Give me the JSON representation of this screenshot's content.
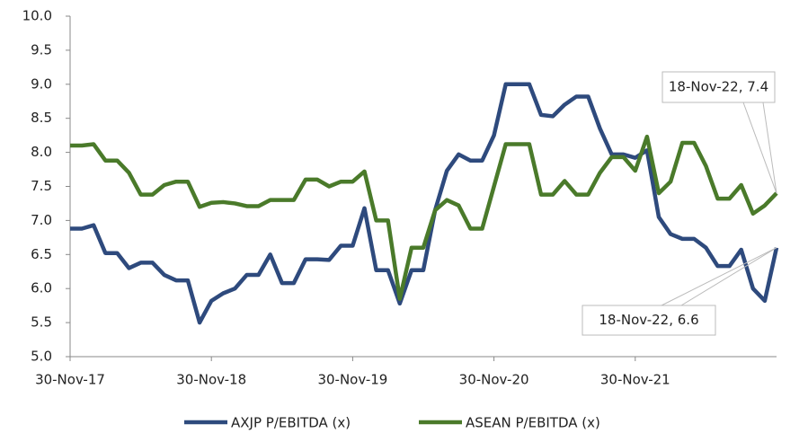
{
  "chart_data": {
    "type": "line",
    "categories": [
      "30-Nov-17",
      null,
      null,
      null,
      null,
      null,
      null,
      null,
      null,
      null,
      null,
      null,
      "30-Nov-18",
      null,
      null,
      null,
      null,
      null,
      null,
      null,
      null,
      null,
      null,
      null,
      "30-Nov-19",
      null,
      null,
      null,
      null,
      null,
      null,
      null,
      null,
      null,
      null,
      null,
      "30-Nov-20",
      null,
      null,
      null,
      null,
      null,
      null,
      null,
      null,
      null,
      null,
      null,
      "30-Nov-21",
      null,
      null,
      null,
      null,
      null,
      null,
      null,
      null,
      null,
      null,
      null,
      null
    ],
    "series": [
      {
        "name": "AXJP P/EBITDA (x)",
        "color": "#2e4a7d",
        "values": [
          6.88,
          6.88,
          6.93,
          6.52,
          6.52,
          6.3,
          6.38,
          6.38,
          6.2,
          6.12,
          6.12,
          5.5,
          5.82,
          5.93,
          6.0,
          6.2,
          6.2,
          6.5,
          6.08,
          6.08,
          6.43,
          6.43,
          6.42,
          6.63,
          6.63,
          7.18,
          6.27,
          6.27,
          5.78,
          6.27,
          6.27,
          7.15,
          7.73,
          7.97,
          7.88,
          7.88,
          8.25,
          9.0,
          9.0,
          9.0,
          8.55,
          8.53,
          8.7,
          8.82,
          8.82,
          8.35,
          7.97,
          7.97,
          7.92,
          8.03,
          7.05,
          6.8,
          6.73,
          6.73,
          6.6,
          6.33,
          6.33,
          6.57,
          6.0,
          5.82,
          6.6
        ]
      },
      {
        "name": "ASEAN P/EBITDA (x)",
        "color": "#4a7a2a",
        "values": [
          8.1,
          8.1,
          8.12,
          7.88,
          7.88,
          7.7,
          7.38,
          7.38,
          7.52,
          7.57,
          7.57,
          7.2,
          7.26,
          7.27,
          7.25,
          7.21,
          7.21,
          7.3,
          7.3,
          7.3,
          7.6,
          7.6,
          7.5,
          7.57,
          7.57,
          7.72,
          7.0,
          7.0,
          5.85,
          6.6,
          6.6,
          7.15,
          7.3,
          7.22,
          6.88,
          6.88,
          7.5,
          8.12,
          8.12,
          8.12,
          7.38,
          7.38,
          7.58,
          7.38,
          7.38,
          7.7,
          7.93,
          7.93,
          7.73,
          8.23,
          7.4,
          7.57,
          8.14,
          8.14,
          7.8,
          7.32,
          7.32,
          7.52,
          7.1,
          7.22,
          7.4
        ]
      }
    ],
    "ylim": [
      5,
      10
    ],
    "yticks": [
      5,
      {
        "value": 5,
        "label": "5.0"
      },
      5.5,
      {
        "value": 6,
        "label": "6.0"
      },
      6.5,
      {
        "value": 7,
        "label": "7.0"
      },
      7.5,
      {
        "value": 8,
        "label": "8.0"
      },
      8.5,
      {
        "value": 9,
        "label": "9.0"
      },
      9.5,
      {
        "value": 10,
        "label": "10.0"
      }
    ],
    "annotations": [
      {
        "text": "18-Nov-22, 7.4",
        "series": 1
      },
      {
        "text": "18-Nov-22, 6.6",
        "series": 0
      }
    ],
    "legend": "bottom",
    "grid": false
  }
}
